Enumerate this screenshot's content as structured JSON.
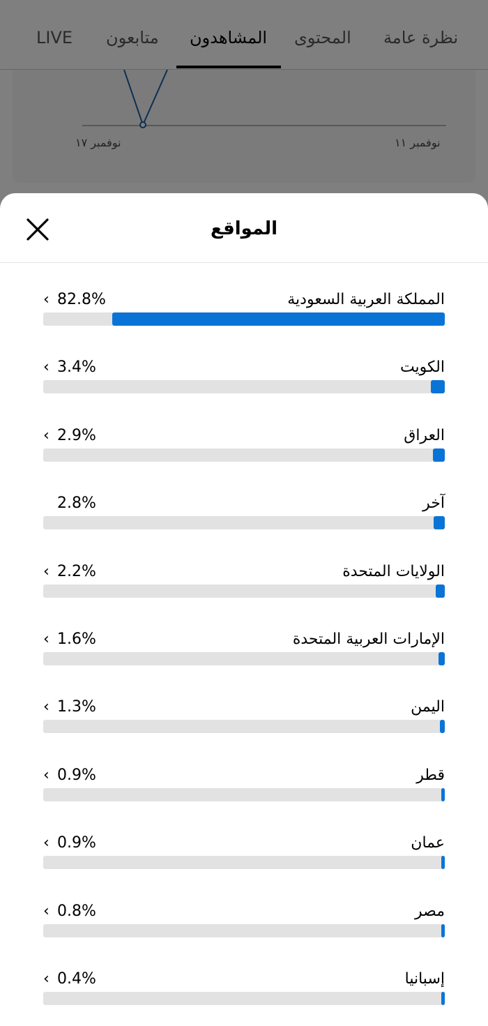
{
  "tabs": [
    {
      "label": "LIVE",
      "active": false
    },
    {
      "label": "متابعون",
      "active": false
    },
    {
      "label": "المشاهدون",
      "active": true
    },
    {
      "label": "المحتوى",
      "active": false
    },
    {
      "label": "نظرة عامة",
      "active": false
    }
  ],
  "background_chart": {
    "x_labels": [
      "نوفمبر ١١",
      "نوفمبر ١٧"
    ]
  },
  "sheet": {
    "title": "المواقع",
    "close_icon": "close-icon"
  },
  "colors": {
    "bar_fill": "#0a74d6",
    "bar_track": "#e2e2e2"
  },
  "locations": [
    {
      "country": "المملكة العربية السعودية",
      "percent_label": "82.8%",
      "percent": 82.8,
      "chevron": true
    },
    {
      "country": "الكويت",
      "percent_label": "3.4%",
      "percent": 3.4,
      "chevron": true
    },
    {
      "country": "العراق",
      "percent_label": "2.9%",
      "percent": 2.9,
      "chevron": true
    },
    {
      "country": "آخر",
      "percent_label": "2.8%",
      "percent": 2.8,
      "chevron": false
    },
    {
      "country": "الولايات المتحدة",
      "percent_label": "2.2%",
      "percent": 2.2,
      "chevron": true
    },
    {
      "country": "الإمارات العربية المتحدة",
      "percent_label": "1.6%",
      "percent": 1.6,
      "chevron": true
    },
    {
      "country": "اليمن",
      "percent_label": "1.3%",
      "percent": 1.3,
      "chevron": true
    },
    {
      "country": "قطر",
      "percent_label": "0.9%",
      "percent": 0.9,
      "chevron": true
    },
    {
      "country": "عمان",
      "percent_label": "0.9%",
      "percent": 0.9,
      "chevron": true
    },
    {
      "country": "مصر",
      "percent_label": "0.8%",
      "percent": 0.8,
      "chevron": true
    },
    {
      "country": "إسبانيا",
      "percent_label": "0.4%",
      "percent": 0.4,
      "chevron": true
    }
  ]
}
